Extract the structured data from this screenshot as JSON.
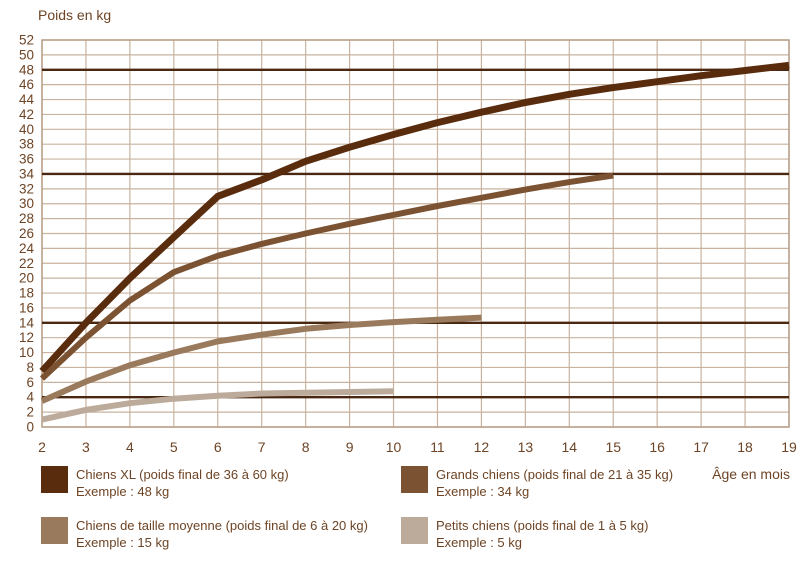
{
  "title": "Poids en kg",
  "x_axis_label": "Âge en mois",
  "colors": {
    "background": "#ffffff",
    "grid": "#c9b39f",
    "plot_border": "#b79d86",
    "reference_line": "#4a2711",
    "text": "#6d4425"
  },
  "chart_data": {
    "type": "line",
    "title": "Poids en kg",
    "xlabel": "Âge en mois",
    "ylabel": "Poids en kg",
    "xlim": [
      2,
      19
    ],
    "ylim": [
      0,
      52
    ],
    "x_ticks": [
      2,
      3,
      4,
      5,
      6,
      7,
      8,
      9,
      10,
      11,
      12,
      13,
      14,
      15,
      16,
      17,
      18,
      19
    ],
    "y_ticks": [
      0,
      2,
      4,
      6,
      8,
      10,
      12,
      14,
      16,
      18,
      20,
      22,
      24,
      26,
      28,
      30,
      32,
      34,
      36,
      38,
      40,
      42,
      44,
      46,
      48,
      50,
      52
    ],
    "grid": true,
    "legend_position": "bottom",
    "reference_lines": [
      48,
      34,
      14,
      4
    ],
    "series": [
      {
        "name": "Chiens XL",
        "color": "#5a2c0e",
        "stroke_width": 7,
        "example_final_weight_kg": 48,
        "points": [
          [
            2,
            7.5
          ],
          [
            3,
            14
          ],
          [
            4,
            20
          ],
          [
            5,
            25.5
          ],
          [
            6,
            31
          ],
          [
            7,
            33.2
          ],
          [
            8,
            35.7
          ],
          [
            9,
            37.6
          ],
          [
            10,
            39.3
          ],
          [
            11,
            40.9
          ],
          [
            12,
            42.3
          ],
          [
            13,
            43.6
          ],
          [
            14,
            44.7
          ],
          [
            15,
            45.6
          ],
          [
            16,
            46.4
          ],
          [
            17,
            47.2
          ],
          [
            18,
            47.9
          ],
          [
            19,
            48.6
          ]
        ]
      },
      {
        "name": "Grands chiens",
        "color": "#7b5232",
        "stroke_width": 6,
        "example_final_weight_kg": 34,
        "points": [
          [
            2,
            6.5
          ],
          [
            3,
            12
          ],
          [
            4,
            17
          ],
          [
            5,
            20.8
          ],
          [
            6,
            23
          ],
          [
            7,
            24.6
          ],
          [
            8,
            26
          ],
          [
            9,
            27.3
          ],
          [
            10,
            28.5
          ],
          [
            11,
            29.7
          ],
          [
            12,
            30.8
          ],
          [
            13,
            31.9
          ],
          [
            14,
            32.9
          ],
          [
            15,
            33.8
          ]
        ]
      },
      {
        "name": "Chiens de taille moyenne",
        "color": "#9a7a5c",
        "stroke_width": 6,
        "example_final_weight_kg": 15,
        "points": [
          [
            2,
            3.5
          ],
          [
            3,
            6.1
          ],
          [
            4,
            8.3
          ],
          [
            5,
            10
          ],
          [
            6,
            11.5
          ],
          [
            7,
            12.4
          ],
          [
            8,
            13.2
          ],
          [
            9,
            13.7
          ],
          [
            10,
            14.1
          ],
          [
            11,
            14.4
          ],
          [
            12,
            14.7
          ]
        ]
      },
      {
        "name": "Petits chiens",
        "color": "#bcab9b",
        "stroke_width": 6,
        "example_final_weight_kg": 5,
        "points": [
          [
            2,
            1
          ],
          [
            3,
            2.3
          ],
          [
            4,
            3.2
          ],
          [
            5,
            3.8
          ],
          [
            6,
            4.2
          ],
          [
            7,
            4.5
          ],
          [
            8,
            4.6
          ],
          [
            9,
            4.7
          ],
          [
            10,
            4.8
          ]
        ]
      }
    ]
  },
  "legend": {
    "items": [
      {
        "label": "Chiens XL (poids final de 36 à 60 kg)",
        "example": "Exemple : 48 kg",
        "color": "#5a2c0e"
      },
      {
        "label": "Grands chiens (poids final de 21 à 35 kg)",
        "example": "Exemple : 34 kg",
        "color": "#7b5232"
      },
      {
        "label": "Chiens de taille moyenne (poids final de 6 à 20 kg)",
        "example": "Exemple : 15 kg",
        "color": "#9a7a5c"
      },
      {
        "label": "Petits chiens (poids final de 1 à 5 kg)",
        "example": "Exemple : 5 kg",
        "color": "#bcab9b"
      }
    ]
  }
}
